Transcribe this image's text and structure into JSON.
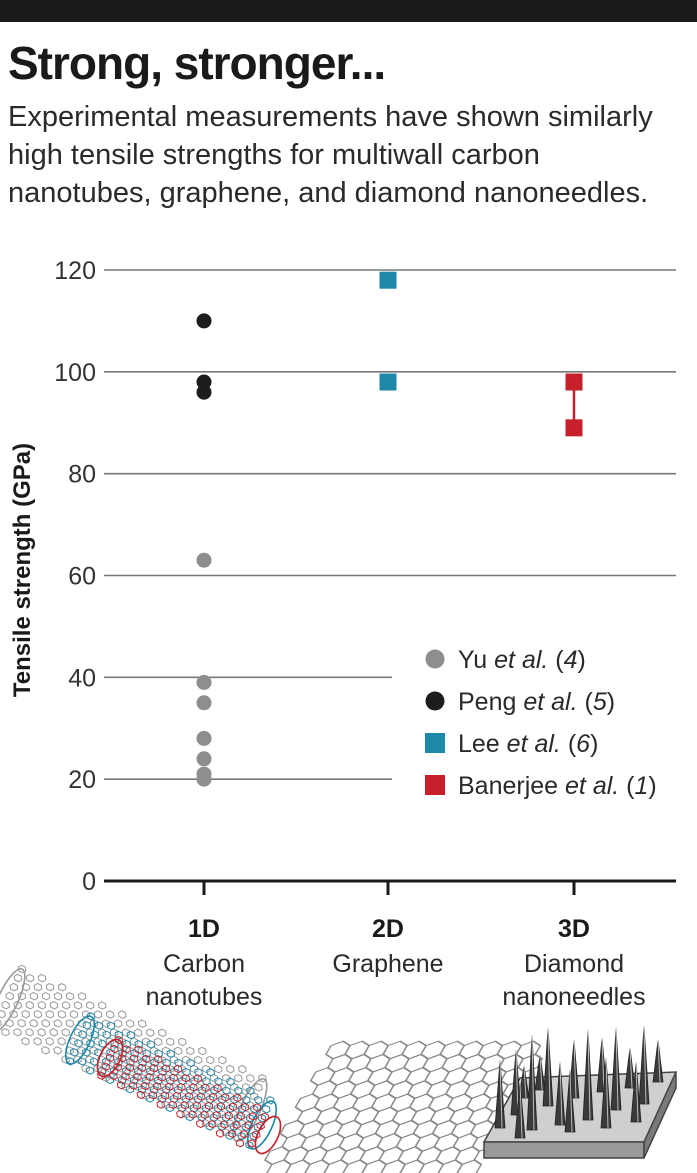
{
  "title": "Strong, stronger...",
  "subtitle": "Experimental measurements have shown similarly high tensile strengths for multiwall carbon nanotubes, graphene, and diamond nanoneedles.",
  "chart_data": {
    "type": "scatter",
    "ylabel": "Tensile strength (GPa)",
    "xlabel": "",
    "ylim": [
      0,
      120
    ],
    "yticks": [
      "0",
      "20",
      "40",
      "60",
      "80",
      "100",
      "120"
    ],
    "categories": [
      {
        "label": "1D",
        "sublabel_lines": [
          "Carbon",
          "nanotubes"
        ]
      },
      {
        "label": "2D",
        "sublabel_lines": [
          "Graphene"
        ]
      },
      {
        "label": "3D",
        "sublabel_lines": [
          "Diamond",
          "nanoneedles"
        ]
      }
    ],
    "series": [
      {
        "name": "Yu et al. (4)",
        "name_parts": [
          "Yu ",
          "et al.",
          " (",
          "4",
          ")"
        ],
        "marker": "circle",
        "color": "#8e8e8e",
        "points": [
          {
            "x": "1D",
            "y": 63
          },
          {
            "x": "1D",
            "y": 39
          },
          {
            "x": "1D",
            "y": 35
          },
          {
            "x": "1D",
            "y": 28
          },
          {
            "x": "1D",
            "y": 24
          },
          {
            "x": "1D",
            "y": 21
          },
          {
            "x": "1D",
            "y": 20
          }
        ]
      },
      {
        "name": "Peng et al. (5)",
        "name_parts": [
          "Peng ",
          "et al.",
          " (",
          "5",
          ")"
        ],
        "marker": "circle",
        "color": "#1d1d1d",
        "points": [
          {
            "x": "1D",
            "y": 110
          },
          {
            "x": "1D",
            "y": 98
          },
          {
            "x": "1D",
            "y": 96
          }
        ]
      },
      {
        "name": "Lee et al. (6)",
        "name_parts": [
          "Lee ",
          "et al.",
          " (",
          "6",
          ")"
        ],
        "marker": "square",
        "color": "#1e88a8",
        "points": [
          {
            "x": "2D",
            "y": 118
          },
          {
            "x": "2D",
            "y": 98
          }
        ]
      },
      {
        "name": "Banerjee et al. (1)",
        "name_parts": [
          "Banerjee ",
          "et al.",
          " (",
          "1",
          ")"
        ],
        "marker": "square",
        "color": "#c8202a",
        "points": [
          {
            "x": "3D",
            "y": 98
          },
          {
            "x": "3D",
            "y": 89
          }
        ],
        "range_line": true
      }
    ],
    "legend_position": "lower-right",
    "grid": true
  }
}
